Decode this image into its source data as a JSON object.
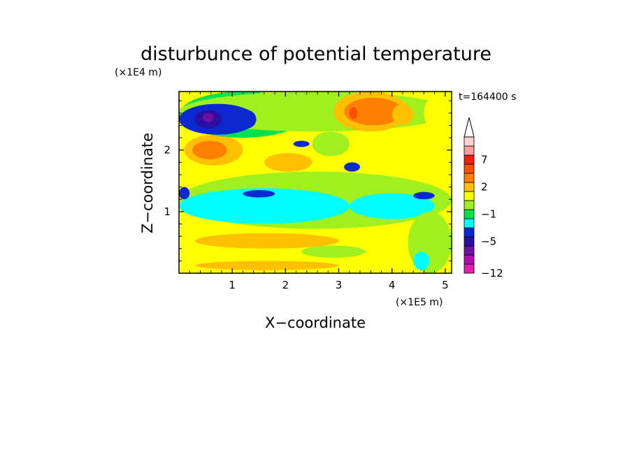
{
  "chart_data": {
    "type": "heatmap",
    "title": "disturbunce of potential temperature",
    "xlabel": "X−coordinate",
    "ylabel": "Z−coordinate",
    "x_unit": "(×1E5 m)",
    "y_unit": "(×1E4 m)",
    "time_label": "t=164400 s",
    "x_range": [
      0,
      5.12
    ],
    "y_range": [
      0,
      2.95
    ],
    "x_ticks": [
      1,
      2,
      3,
      4,
      5
    ],
    "y_ticks": [
      1,
      2
    ],
    "x_tick_labels": [
      "1",
      "2",
      "3",
      "4",
      "5"
    ],
    "y_tick_labels": [
      "1",
      "2"
    ],
    "colorbar": {
      "colors": [
        "#e020b0",
        "#b010b0",
        "#7010a0",
        "#2a10a0",
        "#0a2ad0",
        "#00ffff",
        "#00e050",
        "#a0f020",
        "#ffff00",
        "#ffc000",
        "#ff8000",
        "#ff5000",
        "#f02010",
        "#f8a0a0",
        "#ffd0d0"
      ],
      "labels": [
        {
          "level": 0,
          "text": "−12"
        },
        {
          "level": 3.5,
          "text": "−5"
        },
        {
          "level": 6.5,
          "text": "−1"
        },
        {
          "level": 9.5,
          "text": "2"
        },
        {
          "level": 12.5,
          "text": "7"
        }
      ],
      "extend": "max"
    },
    "grid": false,
    "contour_regions": [
      {
        "level": 8,
        "x": [
          0,
          5.12
        ],
        "y": [
          0,
          2.95
        ]
      },
      {
        "level": 9,
        "x": [
          0.1,
          1.2
        ],
        "y": [
          1.75,
          2.25
        ]
      },
      {
        "level": 10,
        "x": [
          0.25,
          0.9
        ],
        "y": [
          1.85,
          2.15
        ]
      },
      {
        "level": 9,
        "x": [
          1.6,
          2.5
        ],
        "y": [
          1.65,
          1.95
        ]
      },
      {
        "level": 7,
        "x": [
          0,
          5.12
        ],
        "y": [
          0.72,
          1.65
        ]
      },
      {
        "level": 5,
        "x": [
          0,
          3.2
        ],
        "y": [
          0.8,
          1.38
        ]
      },
      {
        "level": 5,
        "x": [
          3.2,
          4.8
        ],
        "y": [
          0.88,
          1.3
        ]
      },
      {
        "level": 4,
        "x": [
          0,
          0.2
        ],
        "y": [
          1.2,
          1.4
        ]
      },
      {
        "level": 4,
        "x": [
          1.2,
          1.8
        ],
        "y": [
          1.23,
          1.35
        ]
      },
      {
        "level": 4,
        "x": [
          4.4,
          4.8
        ],
        "y": [
          1.2,
          1.32
        ]
      },
      {
        "level": 9,
        "x": [
          0.3,
          3.0
        ],
        "y": [
          0.4,
          0.65
        ]
      },
      {
        "level": 9,
        "x": [
          0.3,
          3.0
        ],
        "y": [
          0.05,
          0.2
        ]
      },
      {
        "level": 7,
        "x": [
          2.3,
          3.5
        ],
        "y": [
          0.25,
          0.45
        ]
      },
      {
        "level": 7,
        "x": [
          4.3,
          5.12
        ],
        "y": [
          0,
          1.0
        ]
      },
      {
        "level": 5,
        "x": [
          4.4,
          4.7
        ],
        "y": [
          0.05,
          0.35
        ]
      },
      {
        "level": 6,
        "x": [
          0,
          2.4
        ],
        "y": [
          2.2,
          2.95
        ]
      },
      {
        "level": 7,
        "x": [
          0,
          5.12
        ],
        "y": [
          2.3,
          2.95
        ]
      },
      {
        "level": 4,
        "x": [
          0,
          1.45
        ],
        "y": [
          2.25,
          2.75
        ]
      },
      {
        "level": 3,
        "x": [
          0.3,
          0.8
        ],
        "y": [
          2.35,
          2.65
        ]
      },
      {
        "level": 2,
        "x": [
          0.45,
          0.65
        ],
        "y": [
          2.45,
          2.6
        ]
      },
      {
        "level": 4,
        "x": [
          1.1,
          1.45
        ],
        "y": [
          2.35,
          2.65
        ]
      },
      {
        "level": 4,
        "x": [
          2.15,
          2.45
        ],
        "y": [
          2.05,
          2.15
        ]
      },
      {
        "level": 7,
        "x": [
          2.5,
          3.2
        ],
        "y": [
          1.9,
          2.3
        ]
      },
      {
        "level": 9,
        "x": [
          2.9,
          4.3
        ],
        "y": [
          2.3,
          2.95
        ]
      },
      {
        "level": 10,
        "x": [
          3.1,
          4.2
        ],
        "y": [
          2.4,
          2.85
        ]
      },
      {
        "level": 11,
        "x": [
          3.2,
          3.35
        ],
        "y": [
          2.5,
          2.7
        ]
      },
      {
        "level": 4,
        "x": [
          3.1,
          3.4
        ],
        "y": [
          1.65,
          1.8
        ]
      },
      {
        "level": 8,
        "x": [
          4.6,
          5.12
        ],
        "y": [
          2.3,
          2.9
        ]
      },
      {
        "level": 9,
        "x": [
          4.0,
          4.4
        ],
        "y": [
          2.4,
          2.75
        ]
      }
    ]
  }
}
